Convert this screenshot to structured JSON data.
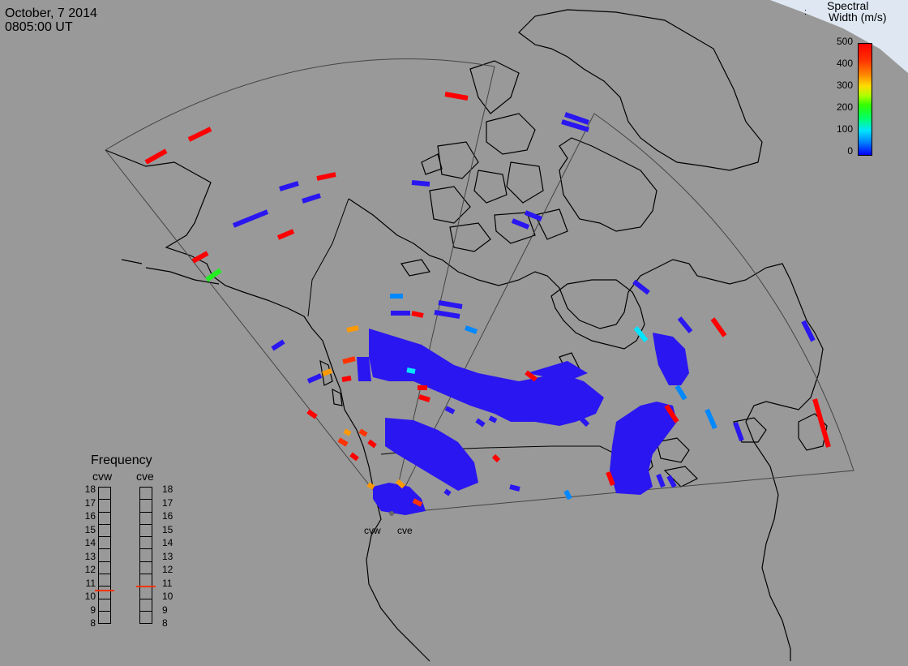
{
  "header": {
    "date": "October, 7 2014",
    "time": "0805:00 UT"
  },
  "colorbar": {
    "title_line1": "Spectral",
    "title_line2": "Width (m/s)",
    "colon": ":",
    "ticks": [
      "500",
      "400",
      "300",
      "200",
      "100",
      "0"
    ],
    "colors": [
      "#0000ff",
      "#0088ff",
      "#00e5ff",
      "#00ff66",
      "#aaff00",
      "#ffdd00",
      "#ff8800",
      "#ff0000"
    ]
  },
  "frequency_panel": {
    "title": "Frequency",
    "radars": [
      "cvw",
      "cve"
    ],
    "levels": [
      "18",
      "17",
      "16",
      "15",
      "14",
      "13",
      "12",
      "11",
      "10",
      "9",
      "8"
    ],
    "current_mhz": [
      10.5,
      10.8
    ]
  },
  "sites": {
    "west": "cvw",
    "east": "cve"
  },
  "map_colors": {
    "background": "#999999",
    "coast": "#000000",
    "ice_corner": "#dfe8f2",
    "dominant_echo": "#2a16f0"
  }
}
